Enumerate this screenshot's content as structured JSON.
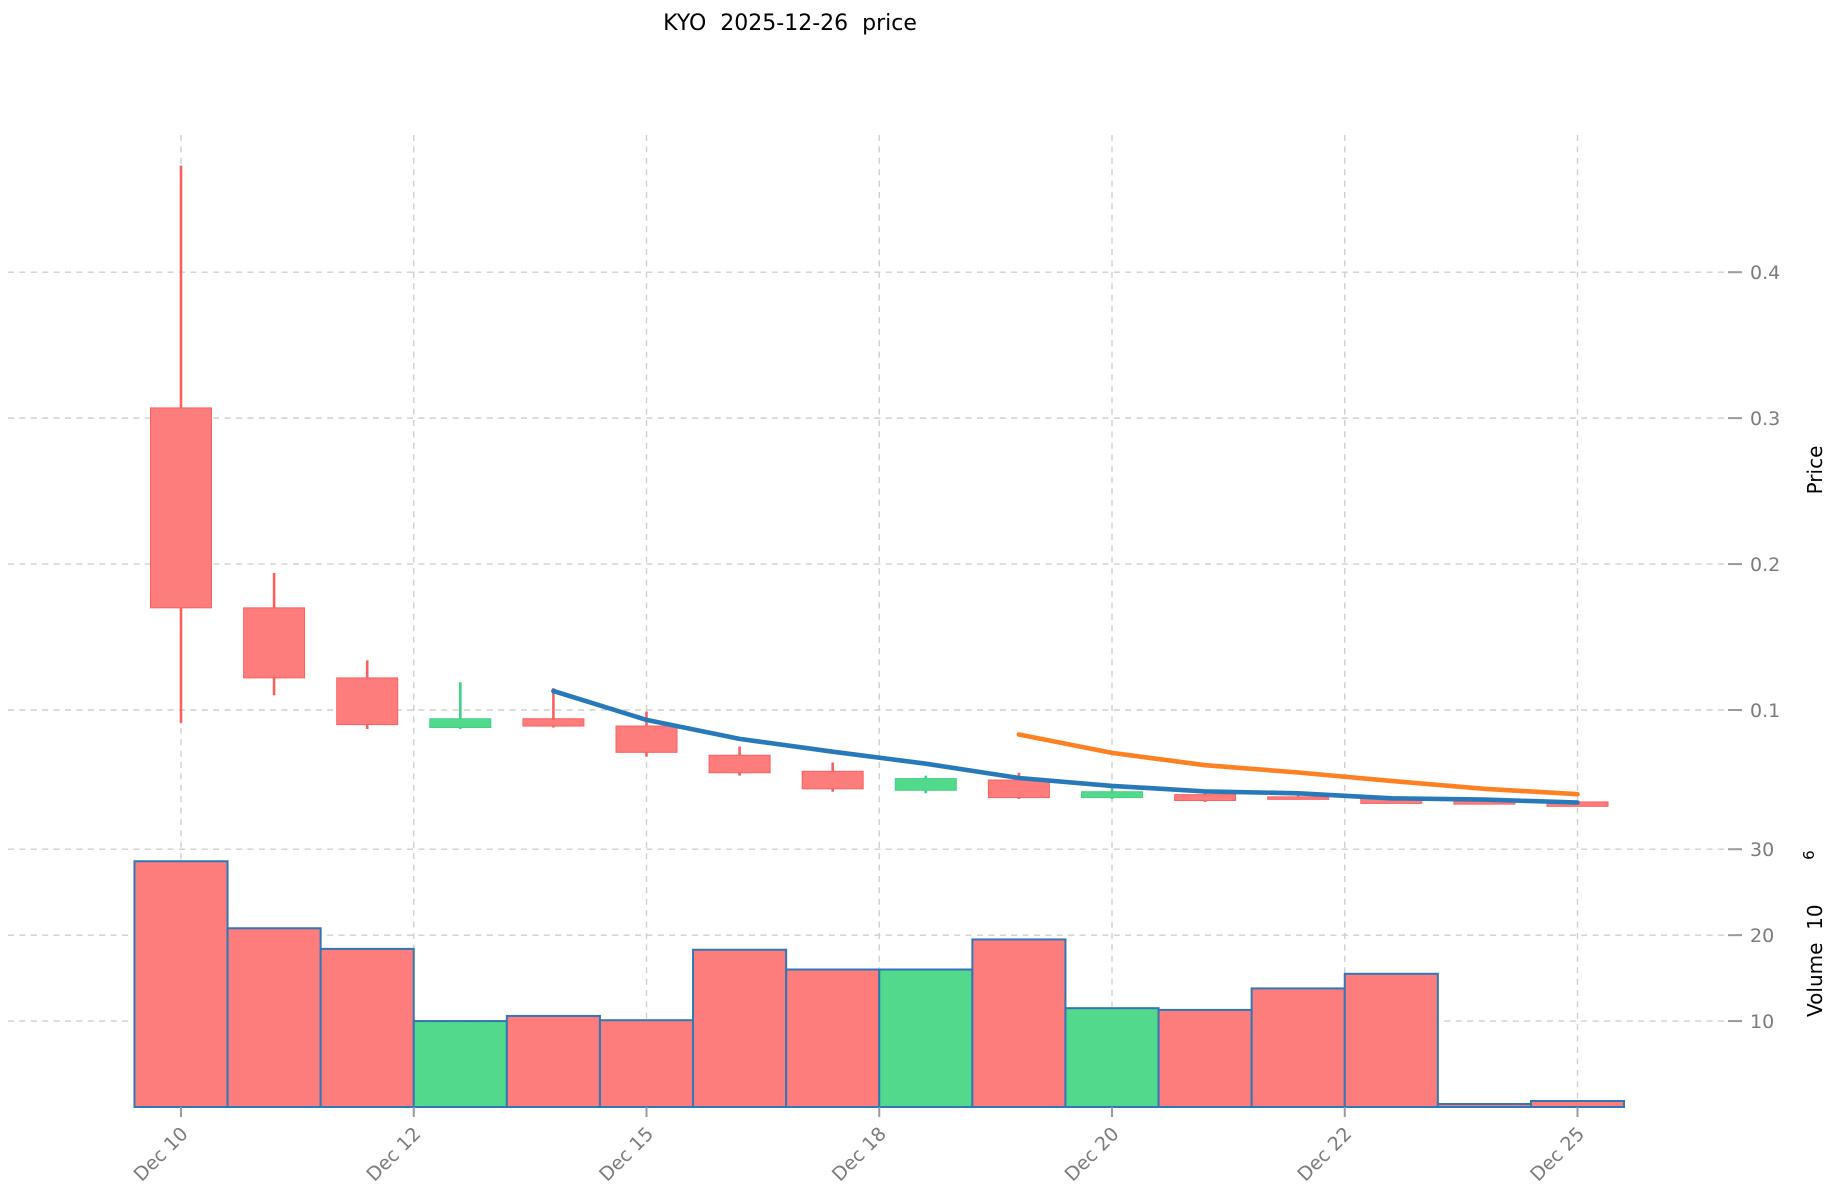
{
  "page": {
    "background": "#ffffff"
  },
  "chart_data": {
    "type": "candlestick",
    "title": "KYO  2025-12-26  price",
    "symbol": "KYO",
    "as_of_date": "2025-12-26",
    "dates": [
      "Dec 10",
      "Dec 11",
      "Dec 12",
      "Dec 13",
      "Dec 14",
      "Dec 15",
      "Dec 16",
      "Dec 17",
      "Dec 18",
      "Dec 19",
      "Dec 20",
      "Dec 21",
      "Dec 22",
      "Dec 23",
      "Dec 24",
      "Dec 25"
    ],
    "ohlc": [
      {
        "open": 0.307,
        "high": 0.473,
        "low": 0.091,
        "close": 0.17
      },
      {
        "open": 0.17,
        "high": 0.194,
        "low": 0.11,
        "close": 0.122
      },
      {
        "open": 0.122,
        "high": 0.134,
        "low": 0.087,
        "close": 0.09
      },
      {
        "open": 0.088,
        "high": 0.119,
        "low": 0.087,
        "close": 0.094
      },
      {
        "open": 0.094,
        "high": 0.115,
        "low": 0.088,
        "close": 0.089
      },
      {
        "open": 0.089,
        "high": 0.099,
        "low": 0.068,
        "close": 0.071
      },
      {
        "open": 0.069,
        "high": 0.075,
        "low": 0.055,
        "close": 0.057
      },
      {
        "open": 0.058,
        "high": 0.064,
        "low": 0.044,
        "close": 0.046
      },
      {
        "open": 0.045,
        "high": 0.055,
        "low": 0.043,
        "close": 0.053
      },
      {
        "open": 0.052,
        "high": 0.057,
        "low": 0.039,
        "close": 0.04
      },
      {
        "open": 0.04,
        "high": 0.047,
        "low": 0.039,
        "close": 0.044
      },
      {
        "open": 0.042,
        "high": 0.043,
        "low": 0.037,
        "close": 0.038
      },
      {
        "open": 0.0405,
        "high": 0.0415,
        "low": 0.039,
        "close": 0.0395
      },
      {
        "open": 0.04,
        "high": 0.0405,
        "low": 0.036,
        "close": 0.036
      },
      {
        "open": 0.0375,
        "high": 0.038,
        "low": 0.0355,
        "close": 0.0355
      },
      {
        "open": 0.037,
        "high": 0.0375,
        "low": 0.034,
        "close": 0.034
      }
    ],
    "candle_direction": [
      "down",
      "down",
      "down",
      "up",
      "down",
      "down",
      "down",
      "down",
      "up",
      "down",
      "up",
      "down",
      "down",
      "down",
      "down",
      "down"
    ],
    "volume_millions": [
      28.6,
      20.8,
      18.4,
      10.0,
      10.6,
      10.1,
      18.3,
      16.0,
      16.0,
      19.5,
      11.5,
      11.3,
      13.8,
      15.5,
      0.35,
      0.7
    ],
    "ma5": [
      null,
      null,
      null,
      null,
      0.113,
      0.0932,
      0.0802,
      0.0714,
      0.0632,
      0.0534,
      0.048,
      0.0442,
      0.0429,
      0.0395,
      0.0386,
      0.0366
    ],
    "ma10": [
      null,
      null,
      null,
      null,
      null,
      null,
      null,
      null,
      null,
      0.0832,
      0.0706,
      0.0622,
      0.0572,
      0.0514,
      0.046,
      0.0423
    ],
    "x_ticks": {
      "positions": [
        0,
        2.5,
        5,
        7.5,
        10,
        12.5,
        15
      ],
      "labels": [
        "Dec 10",
        "Dec 12",
        "Dec 15",
        "Dec 18",
        "Dec 20",
        "Dec 22",
        "Dec 25"
      ]
    },
    "price_axis": {
      "label": "Price",
      "ticks": [
        0.1,
        0.2,
        0.3,
        0.4
      ],
      "ylim": [
        0.026,
        0.494
      ],
      "grid": true,
      "side": "right"
    },
    "volume_axis": {
      "label_main": "Volume  10",
      "label_exponent": "6",
      "ticks": [
        10,
        20,
        30
      ],
      "ylim": [
        0,
        33.4
      ],
      "grid": true,
      "side": "right"
    },
    "legend": {
      "visible": false
    },
    "grid_style": "dashed",
    "colors": {
      "up": "#53d98b",
      "down": "#fd7d7d",
      "up_wick": "#3fd184",
      "down_wick": "#fa6060",
      "volume_edge": "#3176b5",
      "ma5_line": "#2879b9",
      "ma10_line": "#fd8123",
      "grid": "#cfcfcf",
      "tick_text": "#7b7b7b",
      "title_text": "#000000"
    }
  }
}
